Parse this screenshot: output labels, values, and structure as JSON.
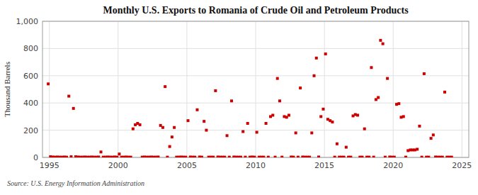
{
  "chart_data": {
    "type": "scatter",
    "title": "Monthly U.S. Exports to Romania of Crude Oil and Petroleum Products",
    "ylabel": "Thousand Barrels",
    "annotation": "Source: U.S. Energy Information Administration",
    "color": "#cc0000",
    "marker": "square",
    "grid": true,
    "xlim": [
      1994.5,
      2025.5
    ],
    "ylim": [
      0,
      1000
    ],
    "xticks": [
      1995,
      2000,
      2005,
      2010,
      2015,
      2020,
      2025
    ],
    "yticks": [
      0,
      200,
      400,
      600,
      800,
      {
        "value": 1000,
        "label": "1,000"
      }
    ],
    "x": [
      1994.917,
      1995.083,
      1995.25,
      1995.417,
      1995.583,
      1995.75,
      1995.917,
      1996.083,
      1996.25,
      1996.417,
      1996.583,
      1996.75,
      1996.917,
      1997.083,
      1997.25,
      1997.417,
      1997.583,
      1997.75,
      1997.917,
      1998.083,
      1998.25,
      1998.417,
      1998.583,
      1998.75,
      1998.917,
      1999.083,
      1999.25,
      1999.417,
      1999.583,
      1999.75,
      1999.917,
      2000.083,
      2000.25,
      2000.417,
      2000.583,
      2000.75,
      2000.917,
      2001.083,
      2001.25,
      2001.417,
      2001.583,
      2001.75,
      2001.917,
      2002.083,
      2002.25,
      2002.417,
      2002.583,
      2002.75,
      2002.917,
      2003.083,
      2003.25,
      2003.417,
      2003.583,
      2003.75,
      2003.917,
      2004.083,
      2004.25,
      2004.417,
      2004.583,
      2004.75,
      2004.917,
      2005.083,
      2005.25,
      2005.417,
      2005.583,
      2005.75,
      2005.917,
      2006.083,
      2006.25,
      2006.417,
      2006.583,
      2006.75,
      2006.917,
      2007.083,
      2007.25,
      2007.417,
      2007.583,
      2007.75,
      2007.917,
      2008.083,
      2008.25,
      2008.417,
      2008.583,
      2008.75,
      2008.917,
      2009.083,
      2009.25,
      2009.417,
      2009.583,
      2009.75,
      2009.917,
      2010.083,
      2010.25,
      2010.417,
      2010.583,
      2010.75,
      2010.917,
      2011.083,
      2011.25,
      2011.417,
      2011.583,
      2011.75,
      2011.917,
      2012.083,
      2012.25,
      2012.417,
      2012.583,
      2012.75,
      2012.917,
      2013.083,
      2013.25,
      2013.417,
      2013.583,
      2013.75,
      2013.917,
      2014.083,
      2014.25,
      2014.417,
      2014.583,
      2014.75,
      2014.917,
      2015.083,
      2015.25,
      2015.417,
      2015.583,
      2015.75,
      2015.917,
      2016.083,
      2016.25,
      2016.417,
      2016.583,
      2016.75,
      2016.917,
      2017.083,
      2017.25,
      2017.417,
      2017.583,
      2017.75,
      2017.917,
      2018.083,
      2018.25,
      2018.417,
      2018.583,
      2018.75,
      2018.917,
      2019.083,
      2019.25,
      2019.417,
      2019.583,
      2019.75,
      2019.917,
      2020.083,
      2020.25,
      2020.417,
      2020.583,
      2020.75,
      2020.917,
      2021.083,
      2021.25,
      2021.417,
      2021.583,
      2021.75,
      2021.917,
      2022.083,
      2022.25,
      2022.417,
      2022.583,
      2022.75,
      2022.917,
      2023.083,
      2023.25,
      2023.417,
      2023.583,
      2023.75,
      2023.917,
      2024.083,
      2024.25
    ],
    "values": [
      540,
      5,
      3,
      2,
      3,
      2,
      2,
      3,
      2,
      450,
      5,
      360,
      5,
      3,
      2,
      2,
      3,
      2,
      2,
      3,
      2,
      2,
      3,
      40,
      2,
      2,
      3,
      2,
      2,
      3,
      2,
      25,
      2,
      2,
      3,
      2,
      2,
      210,
      240,
      250,
      240,
      2,
      3,
      2,
      2,
      3,
      2,
      2,
      3,
      235,
      220,
      520,
      2,
      80,
      150,
      220,
      2,
      2,
      3,
      2,
      2,
      270,
      3,
      2,
      2,
      350,
      3,
      2,
      265,
      200,
      2,
      2,
      2,
      490,
      3,
      2,
      2,
      2,
      160,
      2,
      415,
      3,
      2,
      2,
      2,
      190,
      2,
      250,
      2,
      3,
      2,
      185,
      2,
      2,
      2,
      250,
      2,
      300,
      310,
      2,
      580,
      415,
      2,
      300,
      295,
      310,
      3,
      2,
      180,
      2,
      510,
      3,
      2,
      2,
      2,
      180,
      600,
      730,
      3,
      300,
      355,
      760,
      280,
      270,
      260,
      2,
      100,
      2,
      2,
      2,
      75,
      2,
      2,
      305,
      315,
      310,
      2,
      2,
      210,
      2,
      2,
      660,
      2,
      425,
      440,
      860,
      835,
      2,
      580,
      3,
      2,
      2,
      390,
      395,
      295,
      300,
      2,
      50,
      55,
      55,
      55,
      60,
      230,
      2,
      615,
      2,
      2,
      140,
      165,
      3,
      2,
      2,
      2,
      480,
      2,
      2,
      2
    ]
  }
}
